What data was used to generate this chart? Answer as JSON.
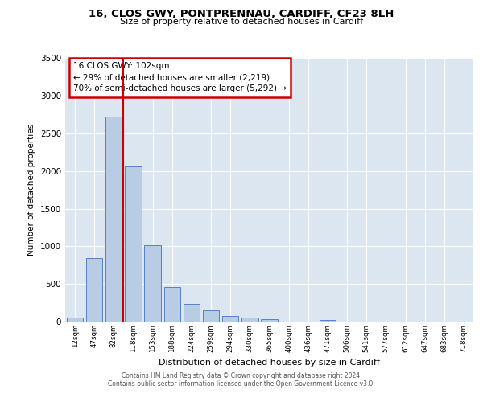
{
  "title1": "16, CLOS GWY, PONTPRENNAU, CARDIFF, CF23 8LH",
  "title2": "Size of property relative to detached houses in Cardiff",
  "xlabel": "Distribution of detached houses by size in Cardiff",
  "ylabel": "Number of detached properties",
  "categories": [
    "12sqm",
    "47sqm",
    "82sqm",
    "118sqm",
    "153sqm",
    "188sqm",
    "224sqm",
    "259sqm",
    "294sqm",
    "330sqm",
    "365sqm",
    "400sqm",
    "436sqm",
    "471sqm",
    "506sqm",
    "541sqm",
    "577sqm",
    "612sqm",
    "647sqm",
    "683sqm",
    "718sqm"
  ],
  "bar_heights": [
    55,
    845,
    2720,
    2060,
    1010,
    460,
    230,
    150,
    70,
    50,
    30,
    0,
    0,
    20,
    0,
    0,
    0,
    0,
    0,
    0,
    0
  ],
  "bar_color": "#b8cce4",
  "bar_edge_color": "#4472c4",
  "vline_color": "#cc0000",
  "annotation_title": "16 CLOS GWY: 102sqm",
  "annotation_line1": "← 29% of detached houses are smaller (2,219)",
  "annotation_line2": "70% of semi-detached houses are larger (5,292) →",
  "annotation_box_color": "#cc0000",
  "ylim": [
    0,
    3500
  ],
  "yticks": [
    0,
    500,
    1000,
    1500,
    2000,
    2500,
    3000,
    3500
  ],
  "plot_bg_color": "#dce6f1",
  "footer1": "Contains HM Land Registry data © Crown copyright and database right 2024.",
  "footer2": "Contains public sector information licensed under the Open Government Licence v3.0."
}
